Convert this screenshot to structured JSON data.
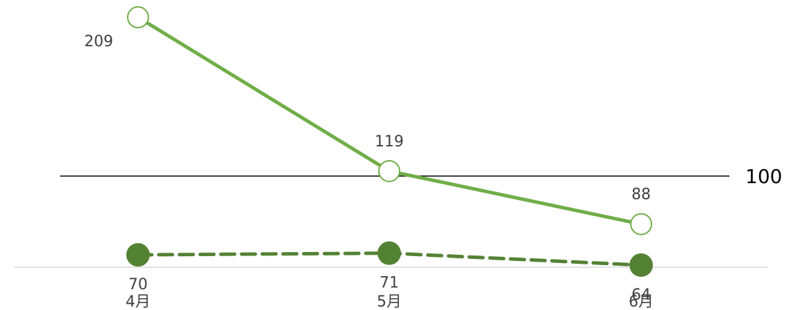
{
  "chart_data": {
    "type": "line",
    "categories": [
      "4月",
      "5月",
      "6月"
    ],
    "series": [
      {
        "values": [
          209,
          119,
          88
        ],
        "line": "solid",
        "marker": "hollow-circle",
        "color": "#70AD47"
      },
      {
        "values": [
          70,
          71,
          64
        ],
        "line": "dashed",
        "marker": "filled-circle",
        "color": "#548235"
      }
    ],
    "reference_line": {
      "value": 100,
      "label": "100",
      "color": "#000000"
    },
    "ylim": [
      0,
      220
    ],
    "grid": false,
    "legend": "none"
  }
}
